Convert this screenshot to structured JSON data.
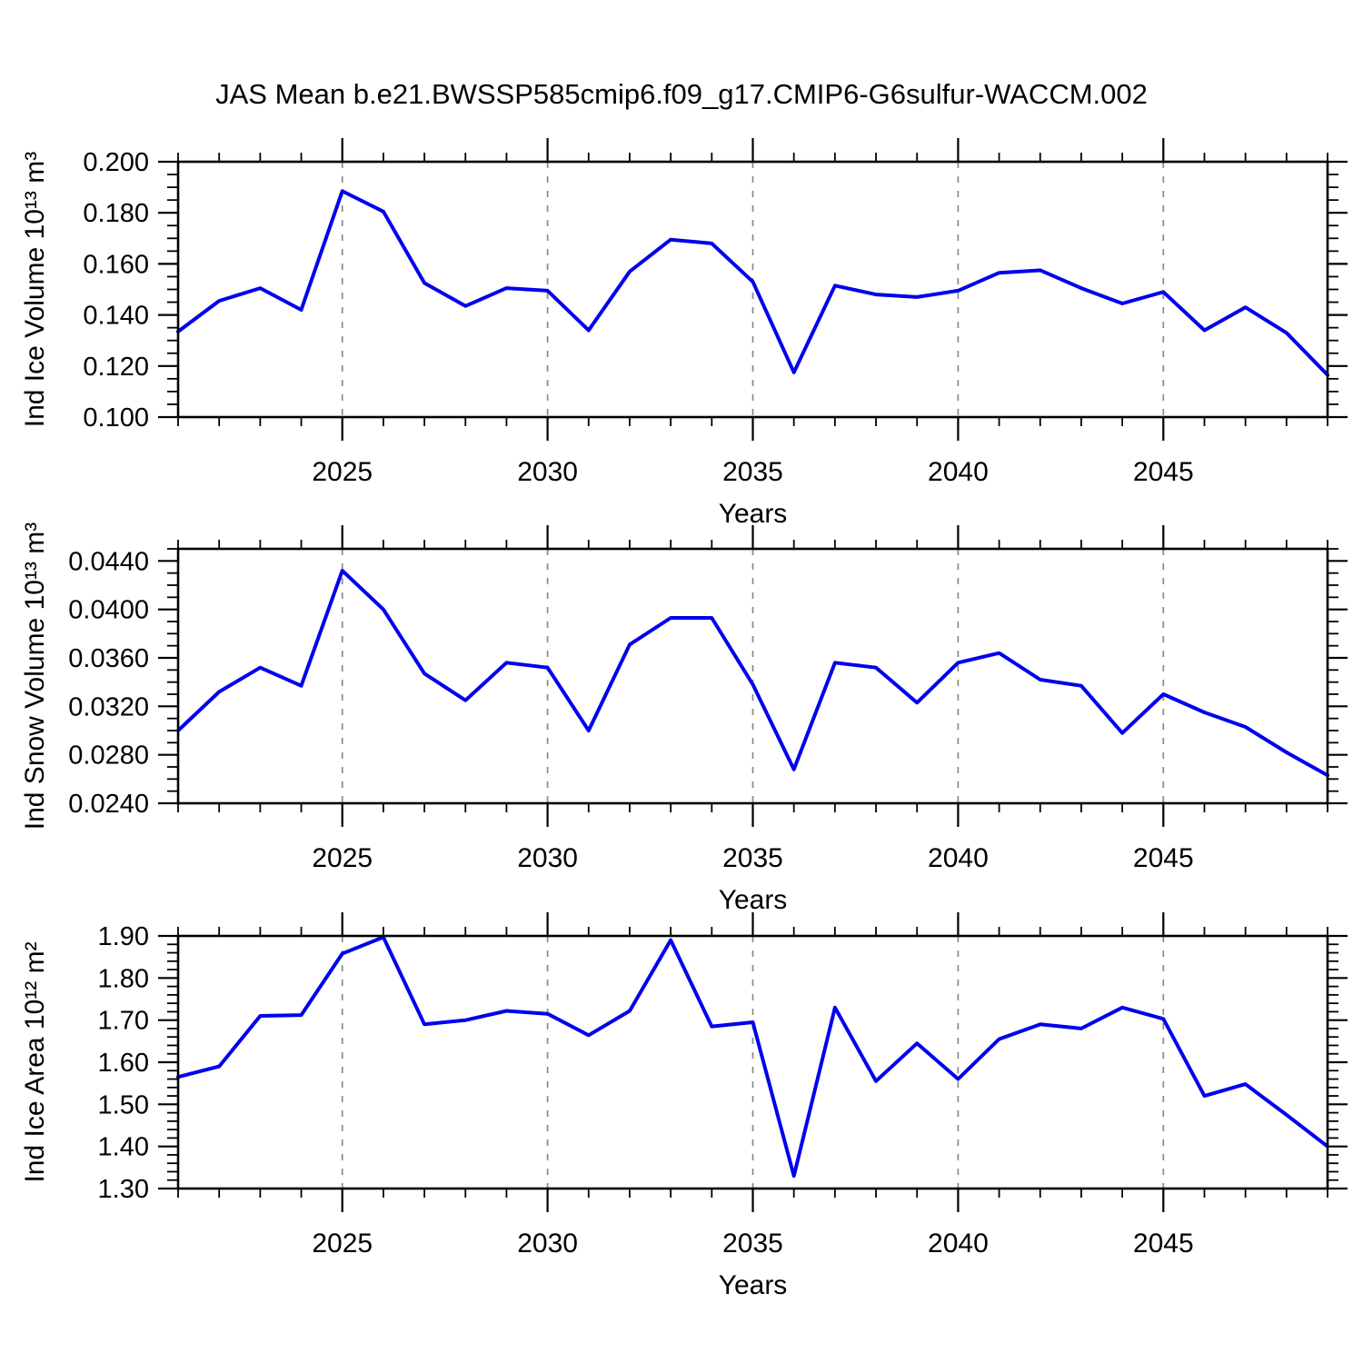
{
  "title": "JAS Mean b.e21.BWSSP585cmip6.f09_g17.CMIP6-G6sulfur-WACCM.002",
  "colors": {
    "line": "#0000EE",
    "grid": "#8a8a8a",
    "axis": "#000000",
    "background": "#ffffff"
  },
  "x_axis": {
    "label": "Years",
    "start": 2021,
    "end": 2049,
    "major_ticks": [
      2025,
      2030,
      2035,
      2040,
      2045
    ],
    "minor_step": 1,
    "major_tick_labels": [
      "2025",
      "2030",
      "2035",
      "2040",
      "2045"
    ]
  },
  "chart_data": [
    {
      "type": "line",
      "title": "",
      "xlabel": "Years",
      "ylabel": "Ind Ice Volume 10¹³ m³",
      "ylim": [
        0.1,
        0.2
      ],
      "y_major_step": 0.02,
      "y_minor_step": 0.005,
      "y_decimals": 3,
      "y_major_tick_labels": [
        "0.100",
        "0.120",
        "0.140",
        "0.160",
        "0.180",
        "0.200"
      ],
      "grid": "vertical-dashed",
      "legend": "none",
      "x": [
        2021,
        2022,
        2023,
        2024,
        2025,
        2026,
        2027,
        2028,
        2029,
        2030,
        2031,
        2032,
        2033,
        2034,
        2035,
        2036,
        2037,
        2038,
        2039,
        2040,
        2041,
        2042,
        2043,
        2044,
        2045,
        2046,
        2047,
        2048,
        2049
      ],
      "values": [
        0.1335,
        0.1455,
        0.1505,
        0.142,
        0.1885,
        0.1805,
        0.1525,
        0.1435,
        0.1505,
        0.1495,
        0.134,
        0.157,
        0.1695,
        0.168,
        0.153,
        0.1175,
        0.1515,
        0.148,
        0.147,
        0.1495,
        0.1565,
        0.1575,
        0.1505,
        0.1445,
        0.149,
        0.134,
        0.143,
        0.133,
        0.1165
      ]
    },
    {
      "type": "line",
      "title": "",
      "xlabel": "Years",
      "ylabel": "Ind Snow Volume 10¹³ m³",
      "ylim": [
        0.024,
        0.045
      ],
      "y_major_step": 0.004,
      "y_minor_step": 0.001,
      "y_decimals": 4,
      "y_major_tick_labels": [
        "0.0240",
        "0.0280",
        "0.0320",
        "0.0360",
        "0.0400",
        "0.0440"
      ],
      "grid": "vertical-dashed",
      "legend": "none",
      "x": [
        2021,
        2022,
        2023,
        2024,
        2025,
        2026,
        2027,
        2028,
        2029,
        2030,
        2031,
        2032,
        2033,
        2034,
        2035,
        2036,
        2037,
        2038,
        2039,
        2040,
        2041,
        2042,
        2043,
        2044,
        2045,
        2046,
        2047,
        2048,
        2049
      ],
      "values": [
        0.03,
        0.0332,
        0.0352,
        0.0337,
        0.0432,
        0.04,
        0.0347,
        0.0325,
        0.0356,
        0.0352,
        0.03,
        0.0371,
        0.0393,
        0.0393,
        0.0338,
        0.0268,
        0.0356,
        0.0352,
        0.0323,
        0.0356,
        0.0364,
        0.0342,
        0.0337,
        0.0298,
        0.033,
        0.0315,
        0.0303,
        0.0282,
        0.0263
      ]
    },
    {
      "type": "line",
      "title": "",
      "xlabel": "Years",
      "ylabel": "Ind Ice Area 10¹² m²",
      "ylim": [
        1.3,
        1.9
      ],
      "y_major_step": 0.1,
      "y_minor_step": 0.02,
      "y_decimals": 2,
      "y_major_tick_labels": [
        "1.30",
        "1.40",
        "1.50",
        "1.60",
        "1.70",
        "1.80",
        "1.90"
      ],
      "grid": "vertical-dashed",
      "legend": "none",
      "x": [
        2021,
        2022,
        2023,
        2024,
        2025,
        2026,
        2027,
        2028,
        2029,
        2030,
        2031,
        2032,
        2033,
        2034,
        2035,
        2036,
        2037,
        2038,
        2039,
        2040,
        2041,
        2042,
        2043,
        2044,
        2045,
        2046,
        2047,
        2048,
        2049
      ],
      "values": [
        1.565,
        1.59,
        1.71,
        1.712,
        1.858,
        1.897,
        1.69,
        1.7,
        1.722,
        1.715,
        1.664,
        1.722,
        1.89,
        1.685,
        1.695,
        1.33,
        1.73,
        1.555,
        1.645,
        1.56,
        1.655,
        1.69,
        1.68,
        1.73,
        1.703,
        1.52,
        1.548,
        1.475,
        1.4
      ]
    }
  ]
}
